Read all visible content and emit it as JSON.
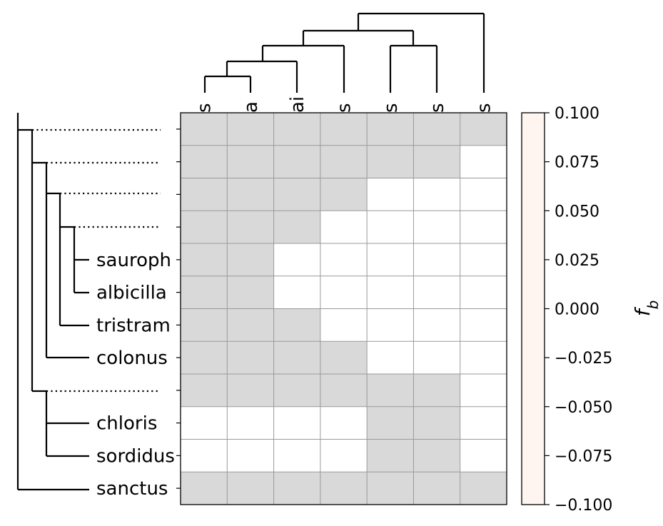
{
  "chart_data": {
    "type": "heatmap",
    "row_labels": [
      "",
      "",
      "",
      "",
      "sauroph",
      "albicilla",
      "tristram",
      "colonus",
      "",
      "chloris",
      "sordidus",
      "sanctus"
    ],
    "col_labels": [
      "s",
      "a",
      "ai",
      "s",
      "s",
      "s",
      "s"
    ],
    "mask": [
      [
        1,
        1,
        1,
        1,
        1,
        1,
        1
      ],
      [
        1,
        1,
        1,
        1,
        1,
        1,
        0
      ],
      [
        1,
        1,
        1,
        1,
        0,
        0,
        0
      ],
      [
        1,
        1,
        1,
        0,
        0,
        0,
        0
      ],
      [
        1,
        1,
        0,
        0,
        0,
        0,
        0
      ],
      [
        1,
        1,
        0,
        0,
        0,
        0,
        0
      ],
      [
        1,
        1,
        1,
        0,
        0,
        0,
        0
      ],
      [
        1,
        1,
        1,
        1,
        0,
        0,
        0
      ],
      [
        1,
        1,
        1,
        1,
        1,
        1,
        0
      ],
      [
        0,
        0,
        0,
        0,
        1,
        1,
        0
      ],
      [
        0,
        0,
        0,
        0,
        1,
        1,
        0
      ],
      [
        1,
        1,
        1,
        1,
        1,
        1,
        1
      ]
    ],
    "mask_color": "#d9d9d9",
    "colorbar": {
      "label": "f_b",
      "vmin": -0.1,
      "vmax": 0.1,
      "ticks": [
        "0.100",
        "0.075",
        "0.050",
        "0.025",
        "0.000",
        "−0.025",
        "−0.050",
        "−0.075",
        "−0.100"
      ],
      "color": "#fff5f0"
    }
  }
}
